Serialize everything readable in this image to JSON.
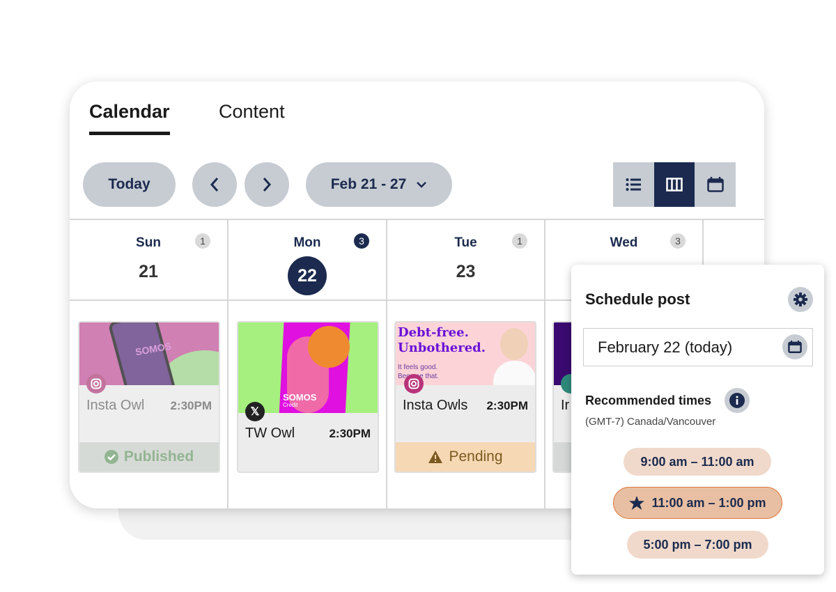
{
  "tabs": [
    {
      "label": "Calendar",
      "active": true
    },
    {
      "label": "Content",
      "active": false
    }
  ],
  "toolbar": {
    "today_label": "Today",
    "range_label": "Feb 21 - 27",
    "views": [
      "list-icon",
      "week-columns-icon",
      "calendar-icon"
    ],
    "active_view": "week-columns-icon"
  },
  "days": [
    {
      "name": "Sun",
      "date": "21",
      "count": "1",
      "today": false
    },
    {
      "name": "Mon",
      "date": "22",
      "count": "3",
      "today": true
    },
    {
      "name": "Tue",
      "date": "23",
      "count": "1",
      "today": false
    },
    {
      "name": "Wed",
      "date": "",
      "count": "3",
      "today": false
    }
  ],
  "posts": [
    {
      "title": "Insta Owl",
      "time": "2:30PM",
      "network": "instagram",
      "status": "Published",
      "image_text": "SOMOS"
    },
    {
      "title": "TW Owl",
      "time": "2:30PM",
      "network": "x",
      "status": "",
      "image_text": "SOMOS",
      "image_subtext": "Credit"
    },
    {
      "title": "Insta Owls",
      "time": "2:30PM",
      "network": "instagram",
      "status": "Pending",
      "image_headline1": "Debt-free.",
      "image_headline2": "Unbothered.",
      "image_sub1": "It feels good.",
      "image_sub2": "Become that."
    },
    {
      "title": "Ir",
      "time": "",
      "network": "other",
      "status": ""
    }
  ],
  "schedule": {
    "title": "Schedule post",
    "date_value": "February 22 (today)",
    "recommended_label": "Recommended times",
    "timezone": "(GMT-7) Canada/Vancouver",
    "slots": [
      {
        "label": "9:00 am – 11:00 am",
        "best": false
      },
      {
        "label": "11:00 am – 1:00 pm",
        "best": true
      },
      {
        "label": "5:00 pm – 7:00 pm",
        "best": false
      }
    ]
  },
  "colors": {
    "navy": "#1b2a4e",
    "pill": "#c7ccd3",
    "pending": "#f7d8b4",
    "published": "#7fa87f",
    "slot": "#f0d9cb",
    "slot_best": "#e8bfa2",
    "slot_best_border": "#e07a3e"
  }
}
